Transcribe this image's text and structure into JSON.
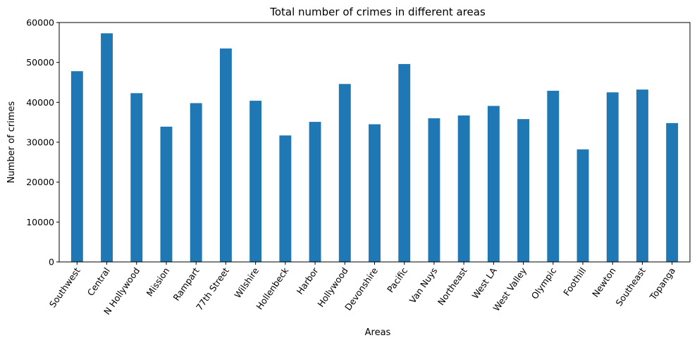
{
  "chart_data": {
    "type": "bar",
    "title": "Total number of crimes in different areas",
    "xlabel": "Areas",
    "ylabel": "Number of crimes",
    "ylim": [
      0,
      60000
    ],
    "yticks": [
      0,
      10000,
      20000,
      30000,
      40000,
      50000,
      60000
    ],
    "grid": false,
    "bar_color": "#1f77b4",
    "categories": [
      "Southwest",
      "Central",
      "N Hollywood",
      "Mission",
      "Rampart",
      "77th Street",
      "Wilshire",
      "Hollenbeck",
      "Harbor",
      "Hollywood",
      "Devonshire",
      "Pacific",
      "Van Nuys",
      "Northeast",
      "West LA",
      "West Valley",
      "Olympic",
      "Foothill",
      "Newton",
      "Southeast",
      "Topanga"
    ],
    "values": [
      47800,
      57300,
      42300,
      33900,
      39800,
      53500,
      40400,
      31700,
      35100,
      44600,
      34500,
      49600,
      36000,
      36700,
      39100,
      35800,
      42900,
      28200,
      42500,
      43200,
      34800
    ]
  }
}
